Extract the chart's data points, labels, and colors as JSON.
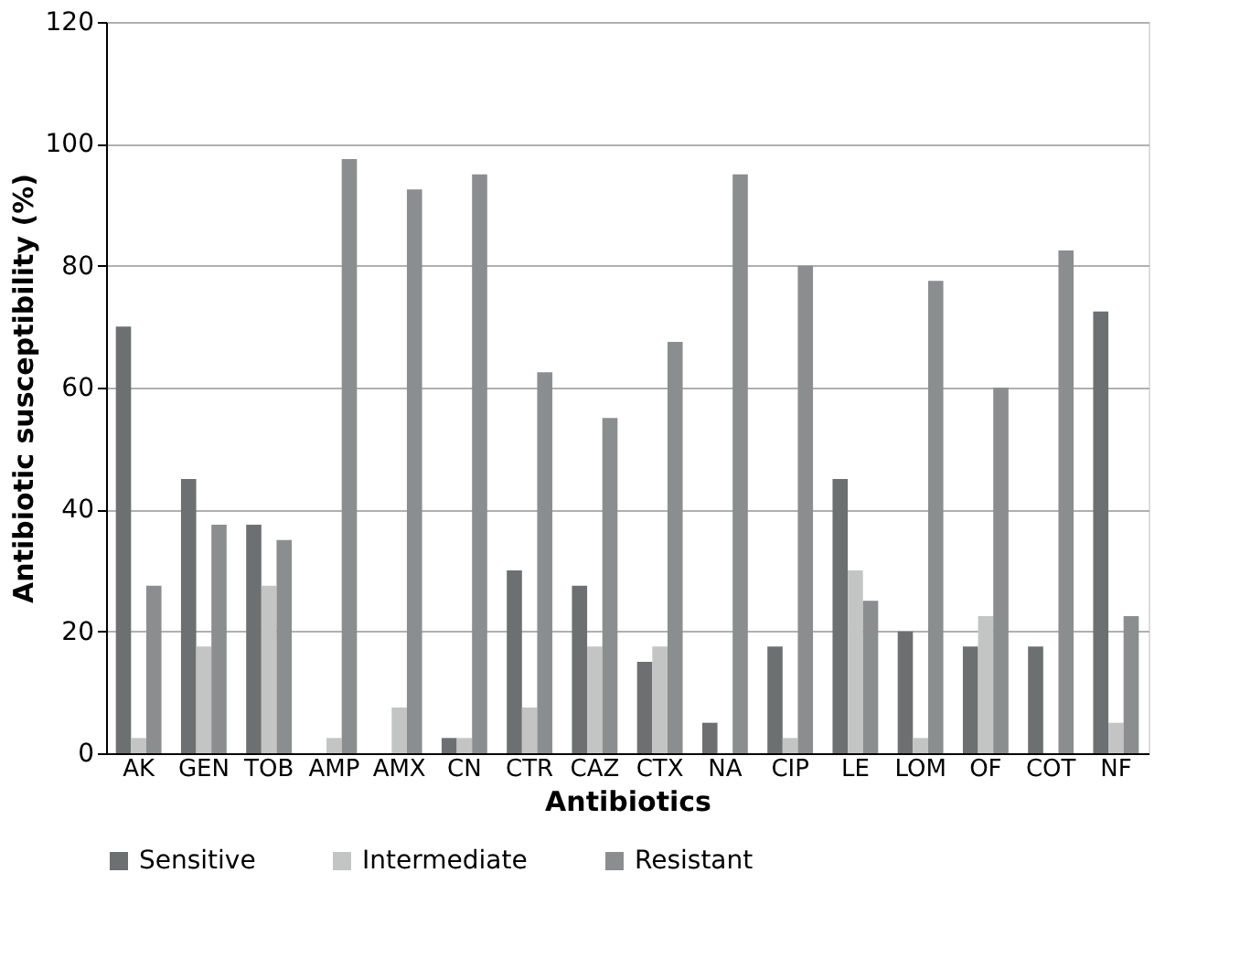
{
  "chart_data": {
    "type": "bar",
    "xlabel": "Antibiotics",
    "ylabel": "Antibiotic susceptibility (%)",
    "categories": [
      "AK",
      "GEN",
      "TOB",
      "AMP",
      "AMX",
      "CN",
      "CTR",
      "CAZ",
      "CTX",
      "NA",
      "CIP",
      "LE",
      "LOM",
      "OF",
      "COT",
      "NF"
    ],
    "series": [
      {
        "name": "Sensitive",
        "color": "#6d7070",
        "values": [
          70,
          45,
          37.5,
          0,
          0,
          2.5,
          30,
          27.5,
          15,
          5,
          17.5,
          45,
          20,
          17.5,
          17.5,
          72.5
        ]
      },
      {
        "name": "Intermediate",
        "color": "#c3c5c5",
        "values": [
          2.5,
          17.5,
          27.5,
          2.5,
          7.5,
          2.5,
          7.5,
          17.5,
          17.5,
          0,
          2.5,
          30,
          2.5,
          22.5,
          0,
          5
        ]
      },
      {
        "name": "Resistant",
        "color": "#8b8e8e",
        "values": [
          27.5,
          37.5,
          35,
          97.5,
          92.5,
          95,
          62.5,
          55,
          67.5,
          95,
          80,
          25,
          77.5,
          60,
          82.5,
          22.5
        ]
      }
    ],
    "ylim": [
      0,
      120
    ],
    "yticks": [
      0,
      20,
      40,
      60,
      80,
      100,
      120
    ],
    "grid": "y",
    "legend": "bottom"
  }
}
